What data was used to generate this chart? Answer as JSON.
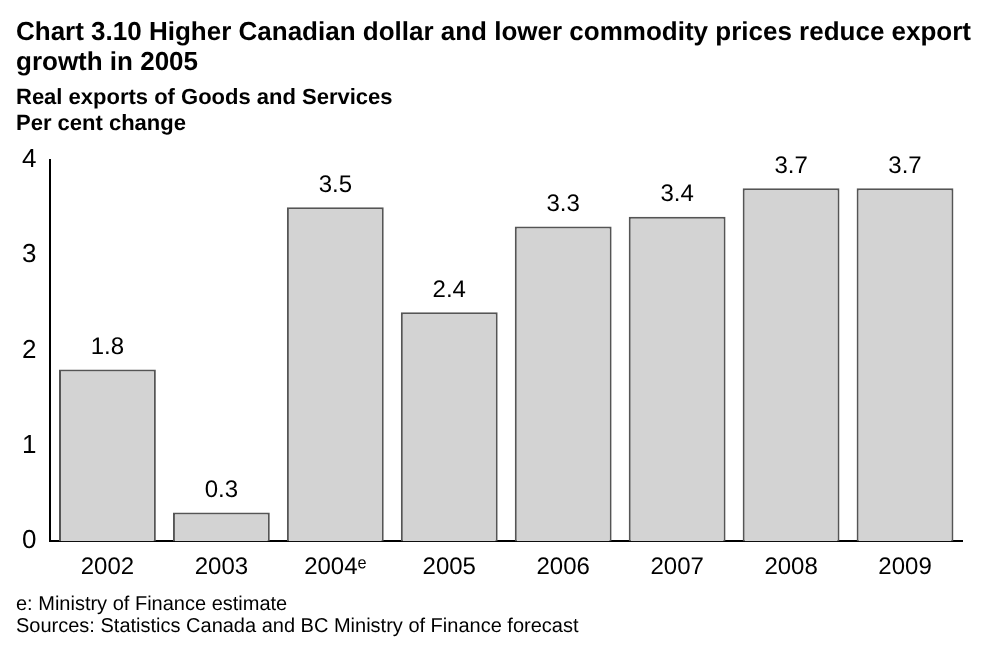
{
  "chart_data": {
    "type": "bar",
    "title": "Chart 3.10 Higher Canadian dollar and lower commodity prices reduce export growth in 2005",
    "subtitle": "Real exports of Goods and Services",
    "ylabel": "Per cent change",
    "categories": [
      "2002",
      "2003",
      "2004ᵉ",
      "2005",
      "2006",
      "2007",
      "2008",
      "2009"
    ],
    "values": [
      1.8,
      0.3,
      3.5,
      2.4,
      3.3,
      3.4,
      3.7,
      3.7
    ],
    "color": "#d3d3d3",
    "ylim": [
      0,
      4
    ],
    "yticks": [
      0,
      1,
      2,
      3,
      4
    ],
    "grid": false,
    "legend": false,
    "data_labels": true,
    "annotations": [
      "e: Ministry of Finance estimate",
      "Sources: Statistics Canada and BC Ministry of Finance forecast"
    ]
  }
}
